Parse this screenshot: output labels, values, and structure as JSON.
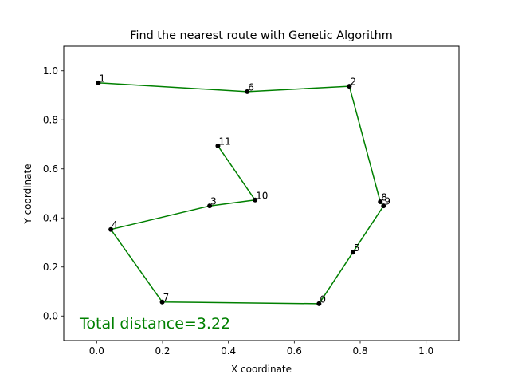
{
  "chart_data": {
    "type": "scatter",
    "title": "Find the nearest route with Genetic Algorithm",
    "xlabel": "X coordinate",
    "ylabel": "Y coordinate",
    "xlim": [
      -0.1,
      1.1
    ],
    "ylim": [
      -0.1,
      1.1
    ],
    "xticks": [
      0.0,
      0.2,
      0.4,
      0.6,
      0.8,
      1.0
    ],
    "yticks": [
      0.0,
      0.2,
      0.4,
      0.6,
      0.8,
      1.0
    ],
    "xtick_labels": [
      "0.0",
      "0.2",
      "0.4",
      "0.6",
      "0.8",
      "1.0"
    ],
    "ytick_labels": [
      "0.0",
      "0.2",
      "0.4",
      "0.6",
      "0.8",
      "1.0"
    ],
    "grid": false,
    "points": [
      {
        "label": "0",
        "x": 0.675,
        "y": 0.05
      },
      {
        "label": "1",
        "x": 0.005,
        "y": 0.951
      },
      {
        "label": "2",
        "x": 0.767,
        "y": 0.937
      },
      {
        "label": "3",
        "x": 0.343,
        "y": 0.449
      },
      {
        "label": "4",
        "x": 0.043,
        "y": 0.353
      },
      {
        "label": "5",
        "x": 0.778,
        "y": 0.26
      },
      {
        "label": "6",
        "x": 0.457,
        "y": 0.915
      },
      {
        "label": "7",
        "x": 0.199,
        "y": 0.057
      },
      {
        "label": "8",
        "x": 0.861,
        "y": 0.466
      },
      {
        "label": "9",
        "x": 0.871,
        "y": 0.449
      },
      {
        "label": "10",
        "x": 0.481,
        "y": 0.473
      },
      {
        "label": "11",
        "x": 0.368,
        "y": 0.694
      }
    ],
    "route": [
      "11",
      "10",
      "3",
      "4",
      "7",
      "0",
      "5",
      "9",
      "8",
      "2",
      "6",
      "1"
    ],
    "route_color": "#008000",
    "point_color": "#000000",
    "annotation": "Total distance=3.22",
    "annotation_color": "#008000"
  }
}
